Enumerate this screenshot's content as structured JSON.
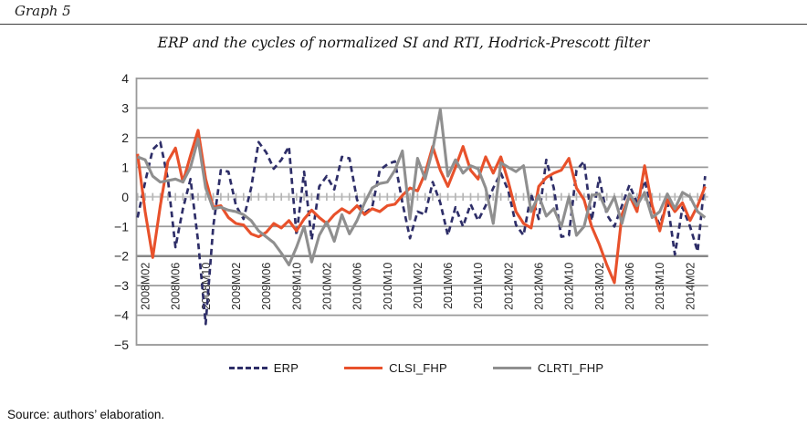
{
  "header": {
    "graph_label": "Graph 5"
  },
  "title": "ERP and the cycles of normalized SI and RTI, Hodrick-Prescott filter",
  "source": "Source: authors’ elaboration.",
  "colors": {
    "erp": "#2e2e68",
    "clsi": "#e8512b",
    "clrti": "#8f8f8f",
    "gridline": "#9a9a9a",
    "zero_line": "#c8c8c8",
    "zero_ticks": "#b5b5b5",
    "category_axis": "#878787",
    "tick_text": "#2b2b2b",
    "value_text": "#1f1f1f"
  },
  "chart_data": {
    "type": "line",
    "title": "ERP and the cycles of normalized SI and RTI, Hodrick-Prescott filter",
    "x_unit": "month",
    "x_range_start": "2008M01",
    "x_range_end": "2014M04",
    "n_points": 76,
    "ylim": [
      -5,
      4
    ],
    "y_ticks": [
      4,
      3,
      2,
      1,
      0,
      -1,
      -2,
      -3,
      -4,
      -5
    ],
    "grid": "horizontal",
    "category_axis_crosses_at": -2,
    "x_tick_labels": [
      "2008M02",
      "2008M06",
      "2008M10",
      "2009M02",
      "2009M06",
      "2009M10",
      "2010M02",
      "2010M06",
      "2010M10",
      "2011M02",
      "2011M06",
      "2011M10",
      "2012M02",
      "2012M06",
      "2012M10",
      "2013M02",
      "2013M06",
      "2013M10",
      "2014M02"
    ],
    "x_tick_first_index": 1,
    "x_tick_step": 4,
    "legend_position": "bottom",
    "series": [
      {
        "name": "ERP",
        "style": "dashed",
        "color": "#2e2e68",
        "values": [
          -0.7,
          0.5,
          1.6,
          1.85,
          0.6,
          -1.7,
          -0.4,
          0.6,
          -1.5,
          -4.3,
          -1.0,
          0.9,
          0.85,
          -0.3,
          -0.75,
          0.3,
          1.85,
          1.5,
          0.95,
          1.25,
          1.7,
          -1.3,
          0.85,
          -1.45,
          0.35,
          0.7,
          0.25,
          1.35,
          1.3,
          -0.1,
          -0.55,
          -0.35,
          0.9,
          1.1,
          1.2,
          -0.2,
          -1.4,
          -0.5,
          -0.6,
          0.5,
          -0.2,
          -1.3,
          -0.35,
          -1.0,
          -0.25,
          -0.8,
          -0.3,
          0.3,
          0.8,
          0.2,
          -0.95,
          -1.3,
          0.1,
          -0.75,
          1.25,
          0.3,
          -1.35,
          -1.3,
          0.9,
          1.2,
          -0.8,
          0.65,
          -0.6,
          -1.0,
          -0.3,
          0.4,
          -0.2,
          0.55,
          -0.4,
          -0.95,
          -0.15,
          -1.95,
          -0.35,
          -1.0,
          -1.85,
          0.7
        ]
      },
      {
        "name": "CLSI_FHP",
        "style": "solid",
        "color": "#e8512b",
        "values": [
          1.45,
          -0.5,
          -2.05,
          -0.3,
          1.2,
          1.65,
          0.5,
          1.4,
          2.25,
          0.6,
          -0.35,
          -0.3,
          -0.7,
          -0.9,
          -0.95,
          -1.25,
          -1.35,
          -1.2,
          -0.9,
          -1.05,
          -0.8,
          -1.15,
          -0.75,
          -0.45,
          -0.7,
          -0.9,
          -0.6,
          -0.4,
          -0.55,
          -0.3,
          -0.6,
          -0.4,
          -0.5,
          -0.3,
          -0.25,
          0.05,
          0.3,
          0.2,
          0.8,
          1.7,
          0.9,
          0.35,
          1.0,
          1.7,
          0.9,
          0.6,
          1.35,
          0.8,
          1.35,
          0.5,
          -0.5,
          -0.9,
          -1.05,
          0.35,
          0.65,
          0.8,
          0.9,
          1.3,
          0.3,
          -0.1,
          -1.0,
          -1.6,
          -2.3,
          -2.9,
          -0.6,
          0.05,
          -0.5,
          1.05,
          -0.3,
          -1.15,
          -0.1,
          -0.5,
          -0.2,
          -0.8,
          -0.3,
          0.35
        ]
      },
      {
        "name": "CLRTI_FHP",
        "style": "solid",
        "color": "#8f8f8f",
        "values": [
          1.35,
          1.25,
          0.7,
          0.5,
          0.55,
          0.6,
          0.5,
          1.0,
          1.95,
          0.3,
          -0.4,
          -0.35,
          -0.45,
          -0.5,
          -0.6,
          -0.8,
          -1.15,
          -1.35,
          -1.55,
          -1.9,
          -2.3,
          -1.7,
          -1.0,
          -2.2,
          -1.3,
          -0.85,
          -1.5,
          -0.6,
          -1.25,
          -0.8,
          -0.2,
          0.3,
          0.45,
          0.5,
          0.9,
          1.55,
          -0.75,
          1.3,
          0.6,
          1.6,
          2.95,
          0.7,
          1.25,
          0.8,
          1.05,
          0.95,
          0.3,
          -0.9,
          1.15,
          1.0,
          0.85,
          1.05,
          -0.5,
          0.05,
          -0.65,
          -0.4,
          -1.0,
          0.0,
          -1.3,
          -1.0,
          0.05,
          0.1,
          -0.5,
          0.0,
          -0.9,
          0.1,
          -0.3,
          0.15,
          -0.7,
          -0.5,
          0.1,
          -0.4,
          0.15,
          0.0,
          -0.5,
          -0.7
        ]
      }
    ]
  },
  "legend": {
    "items": [
      {
        "label": "ERP"
      },
      {
        "label": "CLSI_FHP"
      },
      {
        "label": "CLRTI_FHP"
      }
    ]
  }
}
